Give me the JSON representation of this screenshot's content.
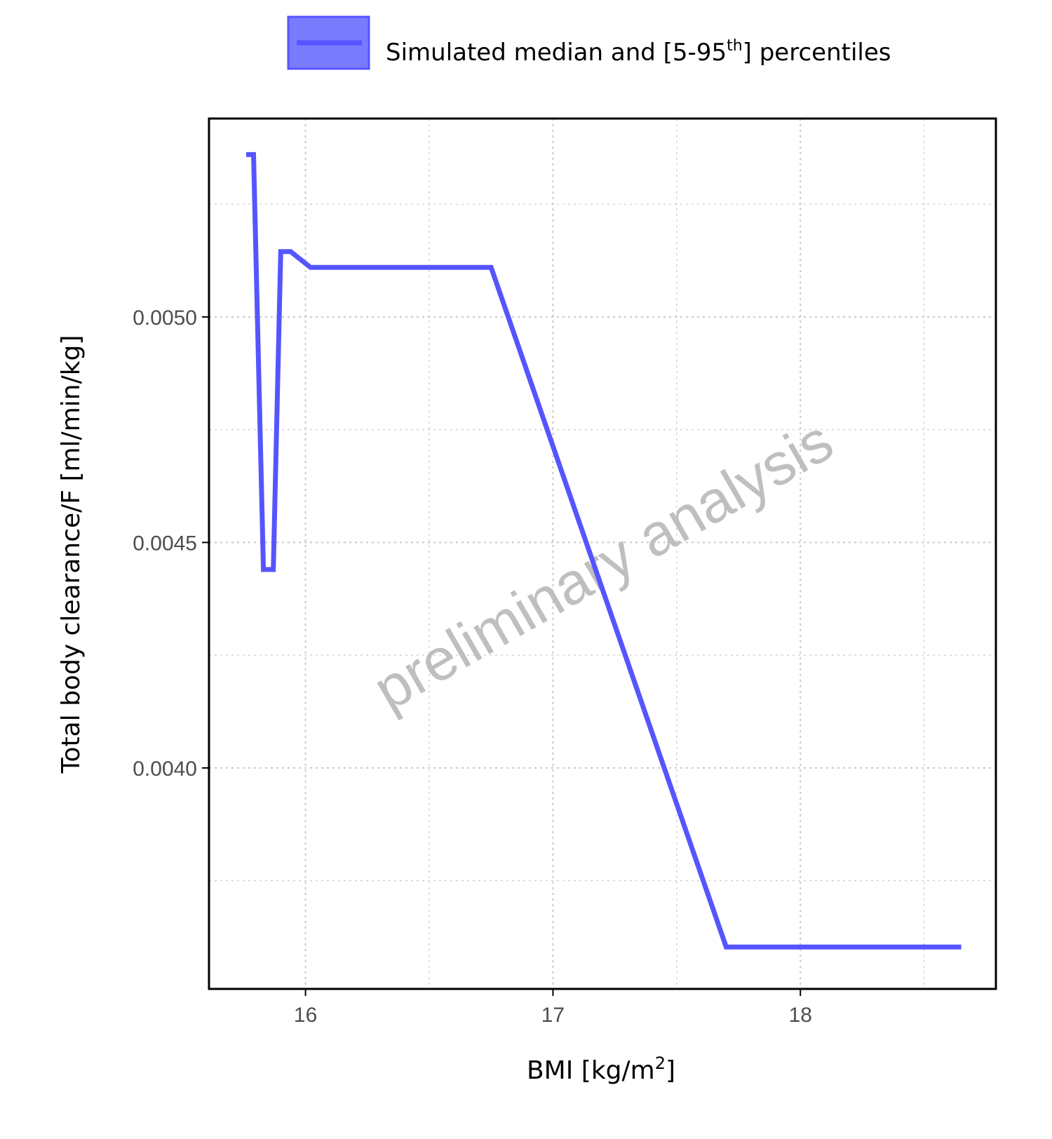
{
  "chart_data": {
    "type": "line",
    "xlabel_main": "BMI [kg/m",
    "xlabel_sup": "2",
    "xlabel_end": "]",
    "ylabel": "Total body clearance/F [ml/min/kg]",
    "x_ticks": [
      "16",
      "17",
      "18"
    ],
    "y_ticks": [
      "0.0040",
      "0.0045",
      "0.0050"
    ],
    "xlim": [
      15.61,
      18.79
    ],
    "ylim": [
      0.00351,
      0.00544
    ],
    "grid": true,
    "legend": {
      "position": "top",
      "label_main": "Simulated median and [5-95",
      "label_sup": "th",
      "label_end": "] percentiles"
    },
    "watermark": "preliminary analysis",
    "colors": {
      "series": "#5555ff",
      "grid": "#c8c8c8",
      "axis": "#000000"
    },
    "series": [
      {
        "x": [
          15.76,
          15.79,
          15.83,
          15.87,
          15.9,
          15.94,
          16.02,
          16.75,
          17.7,
          18.65
        ],
        "y": [
          0.00536,
          0.00536,
          0.00444,
          0.00444,
          0.005145,
          0.005145,
          0.00511,
          0.00511,
          0.003603,
          0.003603
        ]
      }
    ]
  }
}
